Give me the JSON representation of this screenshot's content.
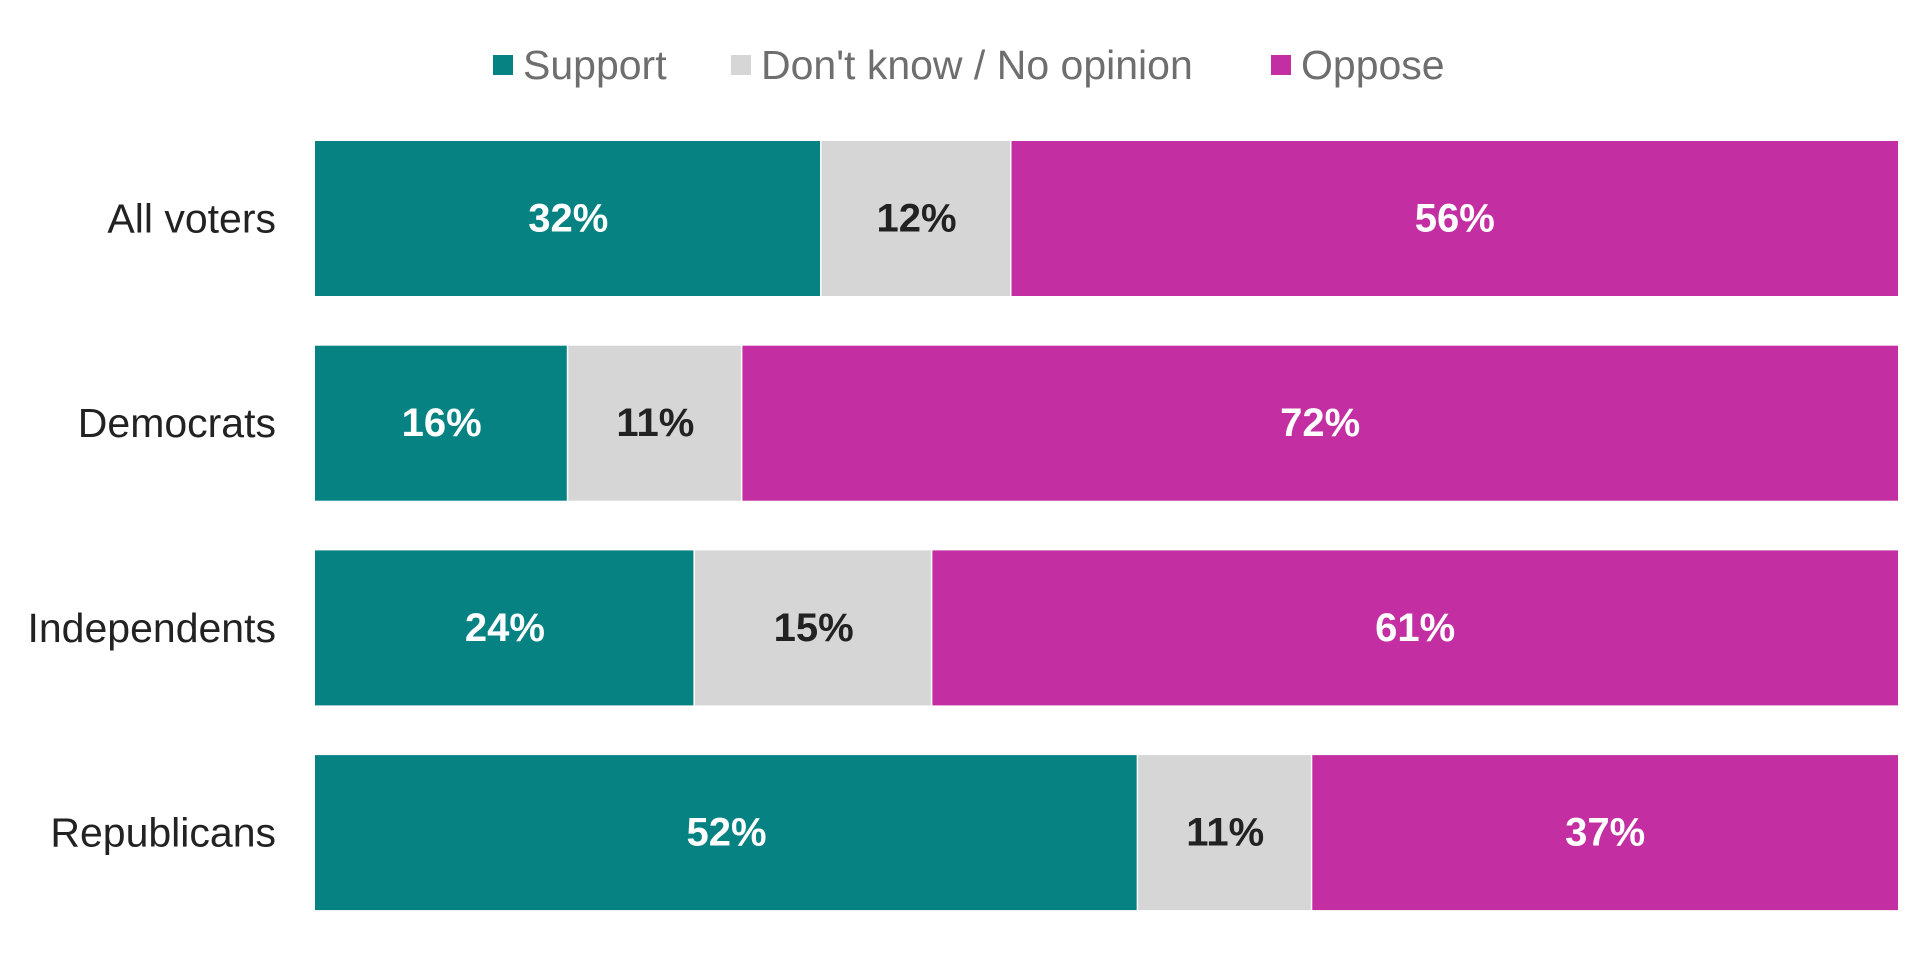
{
  "chart_data": {
    "type": "bar",
    "orientation": "horizontal",
    "stacked": true,
    "title": "",
    "xlabel": "",
    "ylabel": "",
    "xlim": [
      0,
      100
    ],
    "grid": false,
    "legend_position": "top-center",
    "categories": [
      "All voters",
      "Democrats",
      "Independents",
      "Republicans"
    ],
    "series": [
      {
        "name": "Support",
        "color": "#078282",
        "label_color": "#ffffff",
        "values": [
          32,
          16,
          24,
          52
        ],
        "labels": [
          "32%",
          "16%",
          "24%",
          "52%"
        ]
      },
      {
        "name": "Don't know / No opinion",
        "color": "#d6d6d6",
        "label_color": "#222222",
        "values": [
          12,
          11,
          15,
          11
        ],
        "labels": [
          "12%",
          "11%",
          "15%",
          "11%"
        ]
      },
      {
        "name": "Oppose",
        "color": "#c32fa2",
        "label_color": "#ffffff",
        "values": [
          56,
          72,
          61,
          37
        ],
        "labels": [
          "56%",
          "72%",
          "61%",
          "37%"
        ]
      }
    ]
  }
}
